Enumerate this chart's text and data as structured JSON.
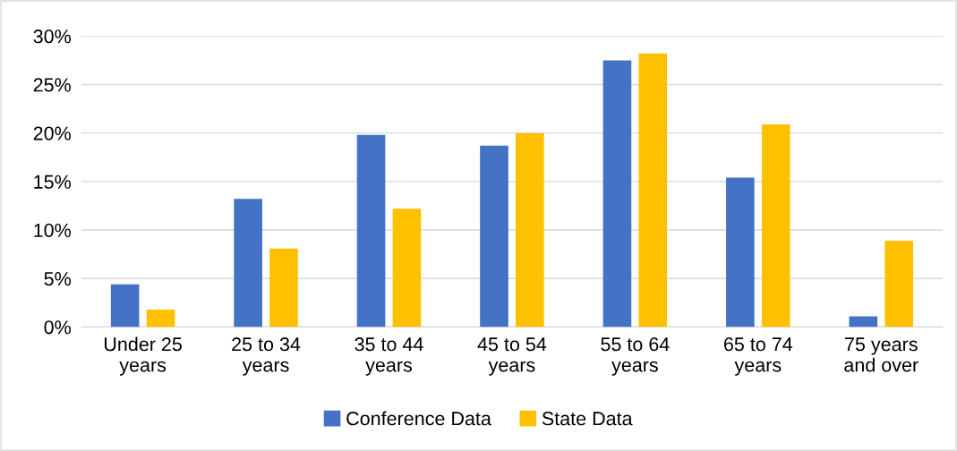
{
  "chart_data": {
    "type": "bar",
    "categories": [
      "Under 25\nyears",
      "25 to 34\nyears",
      "35 to 44\nyears",
      "45 to 54\nyears",
      "55 to 64\nyears",
      "65 to 74\nyears",
      "75 years\nand over"
    ],
    "series": [
      {
        "name": "Conference Data",
        "color": "#4472c4",
        "values": [
          4.4,
          13.2,
          19.8,
          18.7,
          27.5,
          15.4,
          1.1
        ]
      },
      {
        "name": "State Data",
        "color": "#ffc000",
        "values": [
          1.8,
          8.1,
          12.2,
          20.0,
          28.2,
          20.9,
          8.9
        ]
      }
    ],
    "ylim": [
      0,
      30
    ],
    "yticks": [
      {
        "value": 0,
        "label": "0%"
      },
      {
        "value": 5,
        "label": "5%"
      },
      {
        "value": 10,
        "label": "10%"
      },
      {
        "value": 15,
        "label": "15%"
      },
      {
        "value": 20,
        "label": "20%"
      },
      {
        "value": 25,
        "label": "25%"
      },
      {
        "value": 30,
        "label": "30%"
      }
    ],
    "grid": "y",
    "legend": "bottom"
  }
}
